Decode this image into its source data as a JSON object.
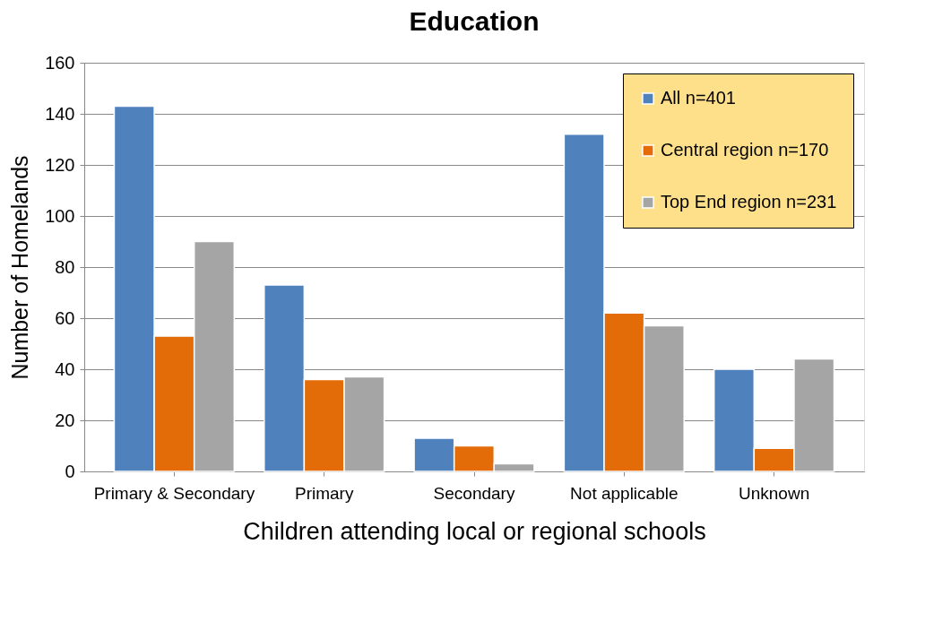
{
  "chart_data": {
    "type": "bar",
    "title": "Education",
    "xlabel": "Children attending local or regional schools",
    "ylabel": "Number of Homelands",
    "categories": [
      "Primary & Secondary",
      "Primary",
      "Secondary",
      "Not applicable",
      "Unknown"
    ],
    "series": [
      {
        "name": "All n=401",
        "color": "#4f81bd",
        "values": [
          143,
          73,
          13,
          132,
          40
        ]
      },
      {
        "name": "Central region n=170",
        "color": "#e36c09",
        "values": [
          53,
          36,
          10,
          62,
          9
        ]
      },
      {
        "name": "Top End region n=231",
        "color": "#a5a5a5",
        "values": [
          90,
          37,
          3,
          57,
          44
        ]
      }
    ],
    "ylim": [
      0,
      160
    ],
    "yticks": [
      0,
      20,
      40,
      60,
      80,
      100,
      120,
      140,
      160
    ],
    "grid": "y",
    "legend": "top right"
  }
}
